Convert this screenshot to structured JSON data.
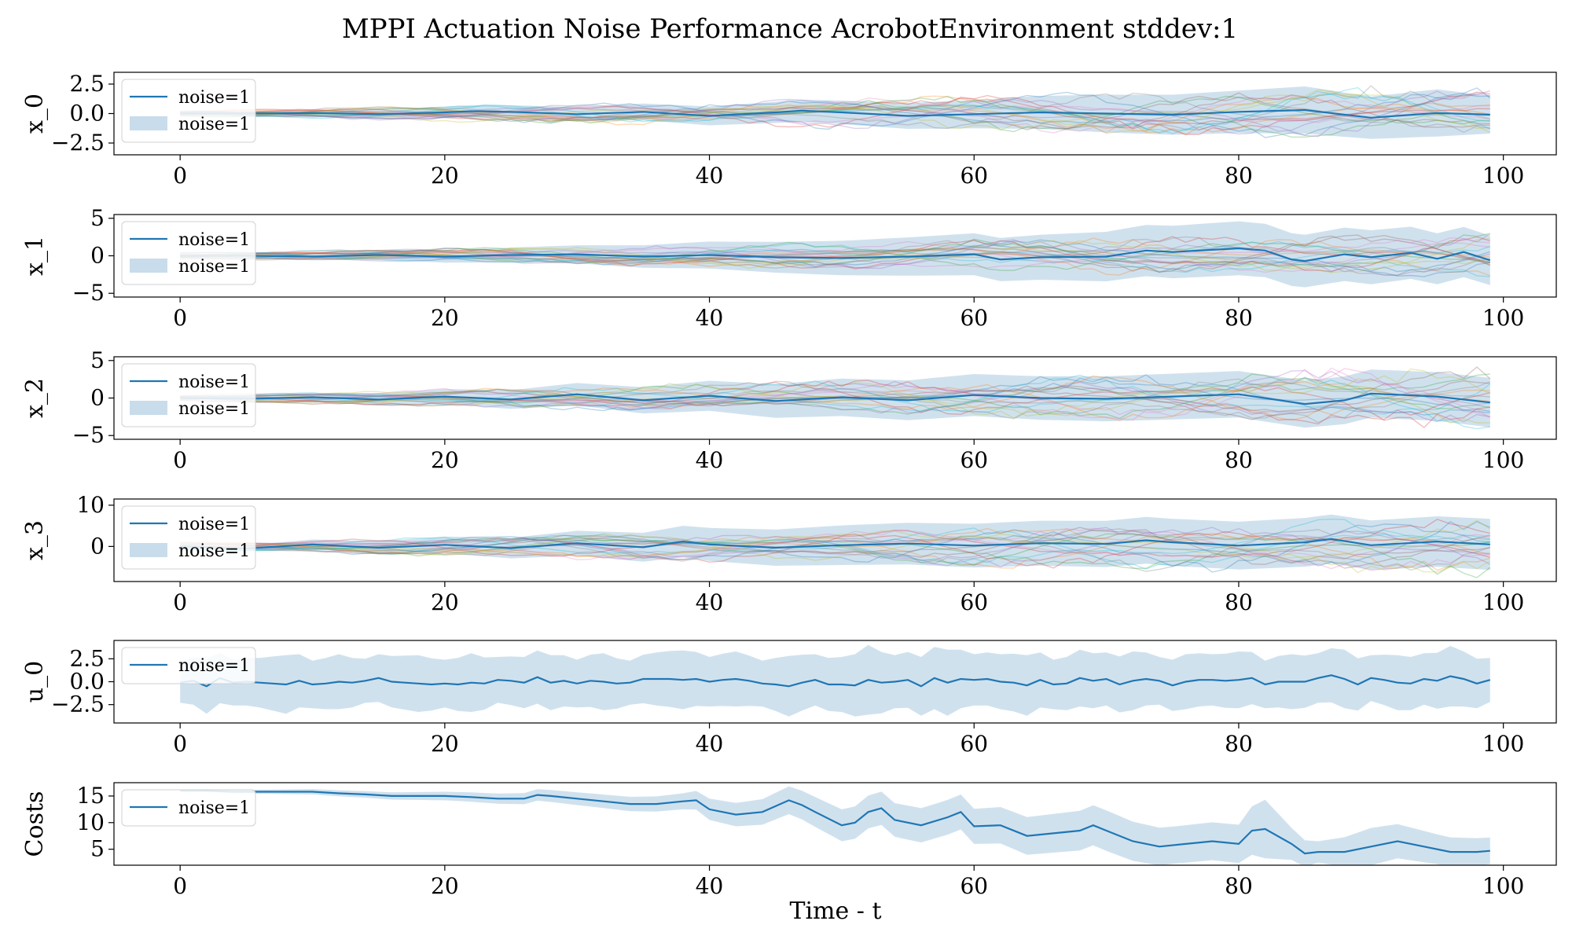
{
  "figure": {
    "title": "MPPI Actuation Noise Performance AcrobotEnvironment stddev:1",
    "xlabel": "Time - t"
  },
  "colors": {
    "mean_line": "#1f77b4",
    "band": "#c8dceb",
    "traces": [
      "#1f77b4",
      "#ff7f0e",
      "#2ca02c",
      "#d62728",
      "#9467bd",
      "#8c564b",
      "#e377c2",
      "#7f7f7f",
      "#bcbd22",
      "#17becf"
    ]
  },
  "chart_data": [
    {
      "type": "line",
      "ylabel": "x_0",
      "xlim": [
        -5,
        104
      ],
      "ylim": [
        -3.5,
        3.5
      ],
      "xticks": [
        0,
        20,
        40,
        60,
        80,
        100
      ],
      "yticks": [
        -2.5,
        0.0,
        2.5
      ],
      "ytick_labels": [
        "−2.5",
        "0.0",
        "2.5"
      ],
      "legend": {
        "placement": "upper-left",
        "entries": [
          "noise=1",
          "noise=1"
        ]
      },
      "trace_count": 20,
      "trace_amp": [
        0.2,
        2.4
      ],
      "series": [
        {
          "name": "noise=1",
          "kind": "mean",
          "x": [
            0,
            5,
            10,
            15,
            20,
            22,
            25,
            30,
            35,
            40,
            45,
            47,
            50,
            55,
            60,
            65,
            70,
            75,
            80,
            85,
            90,
            95,
            99
          ],
          "y": [
            0,
            0,
            0.05,
            -0.05,
            0.1,
            0.2,
            0.15,
            -0.05,
            0.15,
            -0.2,
            0.1,
            0.25,
            0.1,
            -0.2,
            -0.05,
            0.1,
            0.0,
            -0.1,
            0.15,
            0.3,
            -0.35,
            0.05,
            -0.1
          ]
        },
        {
          "name": "noise=1",
          "kind": "band",
          "x": [
            0,
            10,
            20,
            30,
            40,
            50,
            60,
            65,
            70,
            80,
            85,
            90,
            95,
            99
          ],
          "half_width": [
            0.1,
            0.3,
            0.5,
            0.6,
            0.8,
            1.0,
            1.2,
            1.4,
            1.6,
            1.8,
            2.0,
            1.8,
            2.0,
            1.6
          ]
        }
      ]
    },
    {
      "type": "line",
      "ylabel": "x_1",
      "xlim": [
        -5,
        104
      ],
      "ylim": [
        -5.5,
        5.5
      ],
      "xticks": [
        0,
        20,
        40,
        60,
        80,
        100
      ],
      "yticks": [
        -5,
        0,
        5
      ],
      "ytick_labels": [
        "−5",
        "0",
        "5"
      ],
      "legend": {
        "placement": "upper-left",
        "entries": [
          "noise=1",
          "noise=1"
        ]
      },
      "trace_count": 20,
      "trace_amp": [
        0.4,
        3.2
      ],
      "series": [
        {
          "name": "noise=1",
          "kind": "mean",
          "x": [
            0,
            5,
            10,
            15,
            20,
            25,
            30,
            35,
            40,
            45,
            50,
            55,
            60,
            62,
            65,
            70,
            73,
            75,
            80,
            82,
            84,
            85,
            88,
            90,
            93,
            95,
            97,
            99
          ],
          "y": [
            0,
            0,
            -0.1,
            0.1,
            -0.1,
            0.1,
            0.2,
            -0.1,
            0.1,
            -0.2,
            -0.3,
            -0.1,
            0.2,
            -0.5,
            -0.2,
            -0.1,
            0.7,
            0.5,
            1.0,
            0.7,
            -0.5,
            -0.7,
            0.2,
            -0.2,
            0.4,
            -0.4,
            0.5,
            -0.6
          ]
        },
        {
          "name": "noise=1",
          "kind": "band",
          "x": [
            0,
            10,
            20,
            30,
            40,
            50,
            60,
            65,
            70,
            75,
            80,
            85,
            90,
            95,
            99
          ],
          "half_width": [
            0.2,
            0.5,
            0.8,
            1.2,
            1.8,
            2.3,
            2.8,
            3.0,
            3.3,
            3.5,
            3.6,
            3.5,
            3.6,
            3.4,
            3.3
          ]
        }
      ]
    },
    {
      "type": "line",
      "ylabel": "x_2",
      "xlim": [
        -5,
        104
      ],
      "ylim": [
        -5.5,
        5.5
      ],
      "xticks": [
        0,
        20,
        40,
        60,
        80,
        100
      ],
      "yticks": [
        -5,
        0,
        5
      ],
      "ytick_labels": [
        "−5",
        "0",
        "5"
      ],
      "legend": {
        "placement": "upper-left",
        "entries": [
          "noise=1",
          "noise=1"
        ]
      },
      "trace_count": 20,
      "trace_amp": [
        0.4,
        4.2
      ],
      "series": [
        {
          "name": "noise=1",
          "kind": "mean",
          "x": [
            0,
            5,
            10,
            15,
            20,
            25,
            30,
            35,
            40,
            45,
            50,
            55,
            60,
            65,
            70,
            75,
            80,
            85,
            88,
            90,
            95,
            99
          ],
          "y": [
            0,
            -0.1,
            0.1,
            -0.2,
            0.2,
            -0.2,
            0.5,
            -0.3,
            0.3,
            -0.4,
            0.1,
            -0.3,
            0.4,
            0.0,
            -0.1,
            0.2,
            0.5,
            -0.8,
            -0.3,
            0.6,
            0.2,
            -0.6
          ]
        },
        {
          "name": "noise=1",
          "kind": "band",
          "x": [
            0,
            10,
            20,
            30,
            40,
            50,
            60,
            70,
            80,
            90,
            99
          ],
          "half_width": [
            0.2,
            0.6,
            1.0,
            1.5,
            2.0,
            2.5,
            2.8,
            3.0,
            3.1,
            3.2,
            3.3
          ]
        }
      ]
    },
    {
      "type": "line",
      "ylabel": "x_3",
      "xlim": [
        -5,
        104
      ],
      "ylim": [
        -8.5,
        11.5
      ],
      "xticks": [
        0,
        20,
        40,
        60,
        80,
        100
      ],
      "yticks": [
        0,
        10
      ],
      "ytick_labels": [
        "0",
        "10"
      ],
      "legend": {
        "placement": "upper-left",
        "entries": [
          "noise=1",
          "noise=1"
        ]
      },
      "trace_count": 20,
      "trace_amp": [
        1.0,
        7.5
      ],
      "series": [
        {
          "name": "noise=1",
          "kind": "mean",
          "x": [
            0,
            5,
            10,
            15,
            20,
            25,
            30,
            35,
            38,
            40,
            45,
            50,
            55,
            60,
            65,
            70,
            73,
            75,
            80,
            85,
            87,
            90,
            95,
            99
          ],
          "y": [
            0,
            -0.5,
            0.5,
            -0.3,
            0.4,
            -0.4,
            0.8,
            -0.2,
            1.2,
            0.5,
            -0.3,
            0.3,
            0.7,
            0.2,
            0.8,
            0.6,
            1.5,
            1.0,
            0.2,
            1.0,
            1.8,
            0.3,
            1.2,
            0.5
          ]
        },
        {
          "name": "noise=1",
          "kind": "band",
          "x": [
            0,
            10,
            20,
            30,
            40,
            50,
            60,
            70,
            80,
            90,
            99
          ],
          "half_width": [
            0.3,
            1.2,
            2.0,
            3.0,
            4.0,
            4.8,
            5.3,
            5.6,
            5.8,
            6.0,
            6.2
          ]
        }
      ]
    },
    {
      "type": "line",
      "ylabel": "u_0",
      "xlim": [
        -5,
        104
      ],
      "ylim": [
        -4.5,
        4.5
      ],
      "xticks": [
        0,
        20,
        40,
        60,
        80,
        100
      ],
      "yticks": [
        -2.5,
        0.0,
        2.5
      ],
      "ytick_labels": [
        "−2.5",
        "0.0",
        "2.5"
      ],
      "legend": {
        "placement": "upper-left",
        "entries": [
          "noise=1"
        ]
      },
      "trace_count": 0,
      "series": [
        {
          "name": "noise=1",
          "kind": "mean",
          "x": [
            0,
            1,
            2,
            3,
            4,
            5,
            6,
            7,
            8,
            9,
            10,
            11,
            12,
            13,
            14,
            15,
            16,
            17,
            18,
            19,
            20,
            21,
            22,
            23,
            24,
            25,
            26,
            27,
            28,
            29,
            30,
            31,
            32,
            33,
            34,
            35,
            36,
            37,
            38,
            39,
            40,
            41,
            42,
            43,
            44,
            45,
            46,
            47,
            48,
            49,
            50,
            51,
            52,
            53,
            54,
            55,
            56,
            57,
            58,
            59,
            60,
            61,
            62,
            63,
            64,
            65,
            66,
            67,
            68,
            69,
            70,
            71,
            72,
            73,
            74,
            75,
            76,
            77,
            78,
            79,
            80,
            81,
            82,
            83,
            84,
            85,
            86,
            87,
            88,
            89,
            90,
            91,
            92,
            93,
            94,
            95,
            96,
            97,
            98,
            99
          ],
          "y": [
            -0.1,
            0.1,
            -0.5,
            0.4,
            -0.1,
            0.0,
            -0.1,
            -0.2,
            -0.3,
            0.1,
            -0.3,
            -0.2,
            0.0,
            -0.1,
            0.1,
            0.4,
            0.0,
            -0.1,
            -0.2,
            -0.3,
            -0.2,
            -0.3,
            -0.1,
            -0.2,
            0.2,
            0.1,
            -0.1,
            0.5,
            -0.1,
            0.1,
            -0.2,
            0.1,
            0.0,
            -0.2,
            -0.1,
            0.3,
            0.3,
            0.3,
            0.2,
            0.3,
            0.0,
            0.2,
            0.3,
            0.1,
            -0.2,
            -0.3,
            -0.5,
            -0.1,
            0.2,
            -0.3,
            -0.3,
            -0.4,
            0.2,
            -0.1,
            0.0,
            0.2,
            -0.5,
            0.4,
            -0.1,
            0.3,
            0.2,
            0.3,
            0.0,
            -0.1,
            -0.4,
            0.2,
            -0.3,
            -0.2,
            0.4,
            0.1,
            0.3,
            -0.3,
            0.1,
            0.3,
            0.1,
            -0.4,
            0.0,
            0.2,
            0.2,
            0.1,
            0.2,
            0.4,
            -0.3,
            0.0,
            0.0,
            0.0,
            0.4,
            0.7,
            0.3,
            -0.3,
            0.4,
            0.2,
            -0.1,
            -0.2,
            0.3,
            0.1,
            0.6,
            0.3,
            -0.2,
            0.2
          ]
        },
        {
          "name": "noise=1",
          "kind": "band",
          "x": [
            0,
            2,
            4,
            6,
            8,
            10,
            12,
            14,
            16,
            18,
            20,
            22,
            24,
            26,
            28,
            30,
            32,
            34,
            36,
            38,
            40,
            42,
            44,
            46,
            48,
            50,
            52,
            54,
            56,
            58,
            60,
            62,
            64,
            66,
            68,
            70,
            72,
            74,
            76,
            78,
            80,
            82,
            84,
            86,
            88,
            90,
            92,
            94,
            96,
            99
          ],
          "half_width": [
            2.2,
            3.0,
            2.5,
            2.7,
            3.2,
            2.6,
            3.0,
            2.4,
            2.8,
            3.1,
            2.6,
            3.2,
            2.5,
            2.8,
            3.0,
            2.6,
            3.1,
            2.4,
            2.9,
            3.2,
            2.7,
            3.0,
            2.5,
            3.3,
            2.8,
            3.0,
            3.8,
            2.9,
            3.2,
            3.6,
            2.8,
            3.0,
            3.3,
            2.7,
            3.1,
            2.9,
            3.2,
            2.6,
            3.0,
            2.8,
            3.1,
            2.6,
            3.0,
            2.7,
            3.2,
            2.5,
            3.0,
            2.8,
            3.3,
            2.4
          ]
        }
      ]
    },
    {
      "type": "line",
      "ylabel": "Costs",
      "xlim": [
        -5,
        104
      ],
      "ylim": [
        2,
        17.5
      ],
      "xticks": [
        0,
        20,
        40,
        60,
        80,
        100
      ],
      "yticks": [
        5,
        10,
        15
      ],
      "ytick_labels": [
        "5",
        "10",
        "15"
      ],
      "legend": {
        "placement": "upper-left",
        "entries": [
          "noise=1"
        ]
      },
      "trace_count": 0,
      "series": [
        {
          "name": "noise=1",
          "kind": "mean",
          "x": [
            0,
            2,
            4,
            6,
            8,
            10,
            12,
            14,
            16,
            18,
            20,
            22,
            24,
            26,
            27,
            28,
            30,
            32,
            34,
            36,
            38,
            39,
            40,
            42,
            44,
            46,
            47,
            48,
            50,
            51,
            52,
            53,
            54,
            56,
            58,
            59,
            60,
            62,
            64,
            66,
            68,
            69,
            70,
            72,
            74,
            76,
            78,
            80,
            81,
            82,
            84,
            85,
            86,
            88,
            90,
            92,
            94,
            96,
            98,
            99
          ],
          "y": [
            16,
            16,
            15.8,
            15.8,
            15.8,
            15.8,
            15.5,
            15.3,
            15,
            15,
            15,
            14.8,
            14.5,
            14.5,
            15.2,
            15,
            14.5,
            14,
            13.5,
            13.5,
            14,
            14.2,
            12.5,
            11.5,
            12,
            14.2,
            13.3,
            12,
            9.5,
            10,
            12,
            12.7,
            10.5,
            9.5,
            11,
            12,
            9.3,
            9.5,
            7.5,
            8,
            8.5,
            9.5,
            8.5,
            6.5,
            5.5,
            6,
            6.5,
            6,
            8.5,
            8.8,
            6,
            4.2,
            4.5,
            4.5,
            5.5,
            6.5,
            5.5,
            4.5,
            4.5,
            4.7
          ]
        },
        {
          "name": "noise=1",
          "kind": "band",
          "x": [
            0,
            10,
            20,
            30,
            38,
            40,
            45,
            50,
            55,
            60,
            65,
            70,
            75,
            80,
            82,
            84,
            86,
            90,
            95,
            99
          ],
          "half_width": [
            0.2,
            0.5,
            0.8,
            1.2,
            1.5,
            2.0,
            2.5,
            3.0,
            3.2,
            3.3,
            3.6,
            3.8,
            3.5,
            3.6,
            5.5,
            3.0,
            2.0,
            3.5,
            2.8,
            2.5
          ]
        }
      ]
    }
  ]
}
